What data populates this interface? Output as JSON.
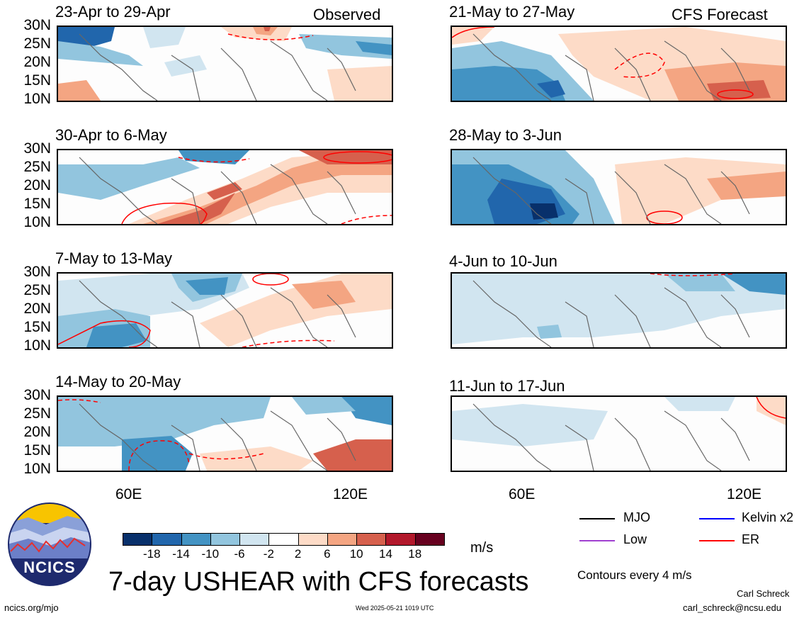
{
  "panels_left": [
    {
      "title": "23-Apr to 29-Apr",
      "tag": "Observed"
    },
    {
      "title": "30-Apr to 6-May",
      "tag": ""
    },
    {
      "title": "7-May to 13-May",
      "tag": ""
    },
    {
      "title": "14-May to 20-May",
      "tag": ""
    }
  ],
  "panels_right": [
    {
      "title": "21-May to 27-May",
      "tag": "CFS Forecast"
    },
    {
      "title": "28-May to 3-Jun",
      "tag": ""
    },
    {
      "title": "4-Jun to 10-Jun",
      "tag": ""
    },
    {
      "title": "11-Jun to 17-Jun",
      "tag": ""
    }
  ],
  "lat_labels": [
    "30N",
    "25N",
    "20N",
    "15N",
    "10N"
  ],
  "lon_labels": [
    "60E",
    "120E"
  ],
  "colorbar": {
    "colors": [
      "#08306b",
      "#2166ac",
      "#4393c3",
      "#92c5de",
      "#d1e5f0",
      "#ffffff",
      "#fddbc7",
      "#f4a582",
      "#d6604d",
      "#b2182b",
      "#67001f"
    ],
    "labels": [
      "-18",
      "-14",
      "-10",
      "-6",
      "-2",
      "2",
      "6",
      "10",
      "14",
      "18"
    ],
    "units": "m/s"
  },
  "legend": {
    "items": [
      {
        "label": "MJO",
        "color": "#000000"
      },
      {
        "label": "Kelvin x2",
        "color": "#0000ff"
      },
      {
        "label": "Low",
        "color": "#a040d0"
      },
      {
        "label": "ER",
        "color": "#ff0000"
      }
    ],
    "contours_note": "Contours every 4 m/s"
  },
  "title": "7-day USHEAR with CFS forecasts",
  "logo_text": "NCICS",
  "footer": {
    "url": "ncics.org/mjo",
    "timestamp": "Wed 2025-05-21 1019 UTC",
    "author": "Carl Schreck",
    "email": "carl_schreck@ncsu.edu"
  }
}
